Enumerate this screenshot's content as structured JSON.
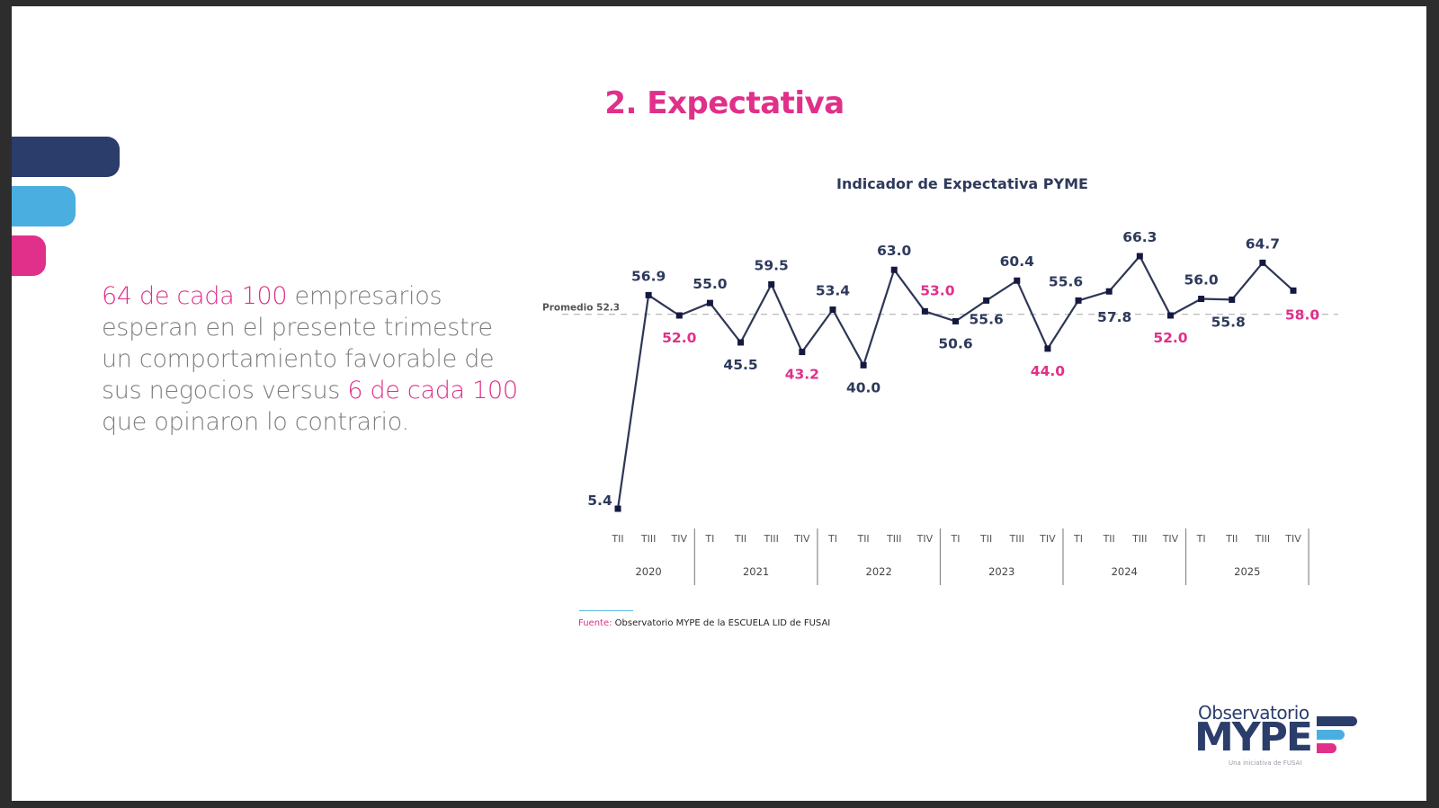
{
  "colors": {
    "navy": "#2b3d6b",
    "light_blue": "#4aaee0",
    "pink": "#e0308a",
    "line": "#2e3656",
    "marker": "#15183f",
    "text_gray": "#7d7d80",
    "average_line": "#b9b9b9"
  },
  "slide": {
    "title": "2. Expectativa",
    "body": {
      "highlight1": "64 de cada 100",
      "text1": " empresarios esperan en el presente trimestre un comportamiento favorable de sus negocios versus ",
      "highlight2": "6 de cada 100",
      "text2": " que opinaron lo contrario."
    },
    "source": {
      "label": "Fuente:",
      "text": " Observatorio MYPE de la ESCUELA LID de FUSAI"
    },
    "logo": {
      "top": "Observatorio",
      "main": "MYPE",
      "tagline": "Una iniciativa de FUSAI"
    }
  },
  "chart_data": {
    "type": "line",
    "title": "Indicador de Expectativa PYME",
    "xlabel": "",
    "ylabel": "",
    "average": {
      "label": "Promedio 52.3",
      "value": 52.3
    },
    "categories": [
      "2020 TII",
      "2020 TIII",
      "2020 TIV",
      "2021 TI",
      "2021 TII",
      "2021 TIII",
      "2021 TIV",
      "2022 TI",
      "2022 TII",
      "2022 TIII",
      "2022 TIV",
      "2023 TI",
      "2023 TII",
      "2023 TIII",
      "2023 TIV",
      "2024 TI",
      "2024 TII",
      "2024 TIII",
      "2024 TIV",
      "2025 TI",
      "2025 TII",
      "2025 TIII",
      "2025 TIV"
    ],
    "quarter_labels": [
      "TII",
      "TIII",
      "TIV",
      "TI",
      "TII",
      "TIII",
      "TIV",
      "TI",
      "TII",
      "TIII",
      "TIV",
      "TI",
      "TII",
      "TIII",
      "TIV",
      "TI",
      "TII",
      "TIII",
      "TIV",
      "TI",
      "TII",
      "TIII",
      "TIV"
    ],
    "years": [
      "2020",
      "2021",
      "2022",
      "2023",
      "2024",
      "2025"
    ],
    "series": [
      {
        "name": "Indicador de Expectativa PYME",
        "values": [
          5.4,
          56.9,
          52.0,
          55.0,
          45.5,
          59.5,
          43.2,
          53.4,
          40.0,
          63.0,
          53.0,
          50.6,
          55.6,
          60.4,
          44.0,
          55.6,
          57.8,
          66.3,
          52.0,
          56.0,
          55.8,
          64.7,
          58.0
        ]
      }
    ],
    "highlighted_labels_pink": [
      "2020 TIV",
      "2021 TIV",
      "2022 TIV",
      "2023 TIV",
      "2024 TIV",
      "2025 TIV"
    ],
    "grid": false,
    "legend": "none"
  }
}
